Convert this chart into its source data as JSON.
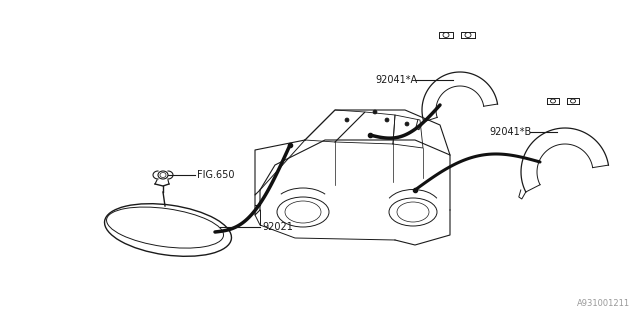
{
  "bg_color": "#ffffff",
  "line_color": "#1a1a1a",
  "fig_width": 6.4,
  "fig_height": 3.2,
  "dpi": 100,
  "labels": {
    "fig650": "FIG.650",
    "part_92021": "92021",
    "part_92041A": "92041*A",
    "part_92041B": "92041*B",
    "diagram_id": "A931001211"
  },
  "font_size_labels": 7,
  "font_size_id": 6
}
